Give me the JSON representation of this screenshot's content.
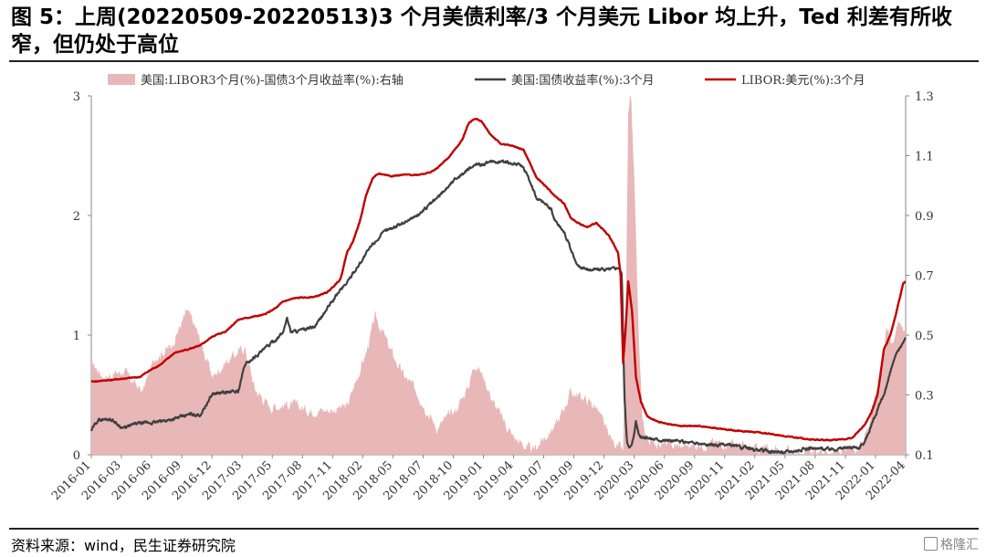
{
  "title": "图 5：上周(20220509-20220513)3 个月美债利率/3 个月美元 Libor 均上升，Ted 利差有所收窄，但仍处于高位",
  "source": "资料来源：wind，民生证券研究院",
  "watermark": "格隆汇",
  "colors": {
    "spread": "#e8b7b7",
    "treasury": "#404040",
    "libor": "#c00000",
    "axis": "#888888"
  },
  "chart_data": {
    "type": "line",
    "legend": [
      "美国:LIBOR3个月(%)-国债3个月收益率(%):右轴",
      "美国:国债收益率(%):3个月",
      "LIBOR:美元(%):3个月"
    ],
    "x_tick_labels": [
      "2016-01",
      "2016-03",
      "2016-06",
      "2016-09",
      "2016-12",
      "2017-03",
      "2017-05",
      "2017-08",
      "2017-11",
      "2018-02",
      "2018-05",
      "2018-07",
      "2018-10",
      "2019-01",
      "2019-04",
      "2019-07",
      "2019-09",
      "2019-12",
      "2020-03",
      "2020-06",
      "2020-09",
      "2020-11",
      "2021-02",
      "2021-05",
      "2021-08",
      "2021-11",
      "2022-01",
      "2022-04"
    ],
    "y_left": {
      "ticks": [
        0,
        1,
        2,
        3
      ],
      "range": [
        0,
        3
      ]
    },
    "y_right": {
      "ticks": [
        "0.1",
        "0.3",
        "0.5",
        "0.7",
        "0.9",
        "1.1",
        "1.3"
      ],
      "range": [
        0.1,
        1.3
      ]
    },
    "series": [
      {
        "name": "美国:LIBOR3个月(%)-国债3个月收益率(%):右轴",
        "type": "area",
        "axis": "right",
        "points": [
          [
            2016.0,
            0.41
          ],
          [
            2016.1,
            0.36
          ],
          [
            2016.25,
            0.38
          ],
          [
            2016.4,
            0.31
          ],
          [
            2016.5,
            0.43
          ],
          [
            2016.62,
            0.46
          ],
          [
            2016.75,
            0.58
          ],
          [
            2016.82,
            0.52
          ],
          [
            2016.95,
            0.36
          ],
          [
            2017.05,
            0.41
          ],
          [
            2017.2,
            0.46
          ],
          [
            2017.28,
            0.32
          ],
          [
            2017.4,
            0.26
          ],
          [
            2017.55,
            0.27
          ],
          [
            2017.7,
            0.25
          ],
          [
            2017.85,
            0.25
          ],
          [
            2018.0,
            0.26
          ],
          [
            2018.08,
            0.36
          ],
          [
            2018.15,
            0.44
          ],
          [
            2018.22,
            0.56
          ],
          [
            2018.28,
            0.51
          ],
          [
            2018.35,
            0.44
          ],
          [
            2018.45,
            0.36
          ],
          [
            2018.55,
            0.31
          ],
          [
            2018.7,
            0.19
          ],
          [
            2018.85,
            0.25
          ],
          [
            2018.95,
            0.33
          ],
          [
            2019.0,
            0.41
          ],
          [
            2019.07,
            0.36
          ],
          [
            2019.15,
            0.27
          ],
          [
            2019.3,
            0.16
          ],
          [
            2019.45,
            0.11
          ],
          [
            2019.55,
            0.16
          ],
          [
            2019.65,
            0.21
          ],
          [
            2019.75,
            0.31
          ],
          [
            2019.85,
            0.29
          ],
          [
            2019.95,
            0.26
          ],
          [
            2020.05,
            0.16
          ],
          [
            2020.12,
            0.13
          ],
          [
            2020.16,
            0.11
          ],
          [
            2020.18,
            0.5
          ],
          [
            2020.2,
            1.23
          ],
          [
            2020.22,
            1.3
          ],
          [
            2020.25,
            1.0
          ],
          [
            2020.28,
            0.52
          ],
          [
            2020.31,
            0.22
          ],
          [
            2020.35,
            0.15
          ],
          [
            2020.45,
            0.14
          ],
          [
            2020.55,
            0.13
          ],
          [
            2020.7,
            0.13
          ],
          [
            2020.85,
            0.14
          ],
          [
            2021.0,
            0.14
          ],
          [
            2021.15,
            0.12
          ],
          [
            2021.3,
            0.12
          ],
          [
            2021.45,
            0.11
          ],
          [
            2021.6,
            0.11
          ],
          [
            2021.75,
            0.11
          ],
          [
            2021.9,
            0.11
          ],
          [
            2022.0,
            0.13
          ],
          [
            2022.08,
            0.2
          ],
          [
            2022.15,
            0.33
          ],
          [
            2022.22,
            0.52
          ],
          [
            2022.27,
            0.48
          ],
          [
            2022.3,
            0.54
          ],
          [
            2022.37,
            0.52
          ]
        ]
      },
      {
        "name": "美国:国债收益率(%):3个月",
        "type": "line",
        "axis": "left",
        "points": [
          [
            2016.0,
            0.2
          ],
          [
            2016.05,
            0.29
          ],
          [
            2016.15,
            0.3
          ],
          [
            2016.25,
            0.22
          ],
          [
            2016.35,
            0.26
          ],
          [
            2016.5,
            0.27
          ],
          [
            2016.65,
            0.3
          ],
          [
            2016.78,
            0.34
          ],
          [
            2016.85,
            0.33
          ],
          [
            2016.95,
            0.51
          ],
          [
            2017.05,
            0.52
          ],
          [
            2017.15,
            0.53
          ],
          [
            2017.2,
            0.75
          ],
          [
            2017.35,
            0.88
          ],
          [
            2017.45,
            0.97
          ],
          [
            2017.5,
            1.02
          ],
          [
            2017.53,
            1.15
          ],
          [
            2017.56,
            1.03
          ],
          [
            2017.65,
            1.04
          ],
          [
            2017.75,
            1.07
          ],
          [
            2017.85,
            1.23
          ],
          [
            2017.95,
            1.38
          ],
          [
            2018.0,
            1.44
          ],
          [
            2018.1,
            1.6
          ],
          [
            2018.2,
            1.76
          ],
          [
            2018.3,
            1.87
          ],
          [
            2018.4,
            1.92
          ],
          [
            2018.55,
            2.0
          ],
          [
            2018.7,
            2.14
          ],
          [
            2018.85,
            2.31
          ],
          [
            2019.0,
            2.42
          ],
          [
            2019.1,
            2.44
          ],
          [
            2019.2,
            2.45
          ],
          [
            2019.35,
            2.43
          ],
          [
            2019.4,
            2.36
          ],
          [
            2019.45,
            2.24
          ],
          [
            2019.48,
            2.15
          ],
          [
            2019.55,
            2.1
          ],
          [
            2019.6,
            2.05
          ],
          [
            2019.62,
            1.97
          ],
          [
            2019.7,
            1.86
          ],
          [
            2019.75,
            1.72
          ],
          [
            2019.8,
            1.58
          ],
          [
            2019.88,
            1.55
          ],
          [
            2020.05,
            1.55
          ],
          [
            2020.13,
            1.57
          ],
          [
            2020.15,
            1.5
          ],
          [
            2020.17,
            0.5
          ],
          [
            2020.19,
            0.1
          ],
          [
            2020.21,
            0.05
          ],
          [
            2020.24,
            0.14
          ],
          [
            2020.26,
            0.27
          ],
          [
            2020.29,
            0.15
          ],
          [
            2020.35,
            0.14
          ],
          [
            2020.5,
            0.12
          ],
          [
            2020.7,
            0.1
          ],
          [
            2020.85,
            0.08
          ],
          [
            2021.0,
            0.08
          ],
          [
            2021.2,
            0.04
          ],
          [
            2021.4,
            0.02
          ],
          [
            2021.6,
            0.05
          ],
          [
            2021.8,
            0.05
          ],
          [
            2021.95,
            0.06
          ],
          [
            2022.0,
            0.06
          ],
          [
            2022.05,
            0.1
          ],
          [
            2022.12,
            0.3
          ],
          [
            2022.2,
            0.5
          ],
          [
            2022.28,
            0.8
          ],
          [
            2022.33,
            0.9
          ],
          [
            2022.37,
            0.99
          ]
        ]
      },
      {
        "name": "LIBOR:美元(%):3个月",
        "type": "line",
        "axis": "left",
        "points": [
          [
            2016.0,
            0.61
          ],
          [
            2016.2,
            0.63
          ],
          [
            2016.38,
            0.65
          ],
          [
            2016.45,
            0.7
          ],
          [
            2016.55,
            0.76
          ],
          [
            2016.65,
            0.85
          ],
          [
            2016.75,
            0.88
          ],
          [
            2016.85,
            0.91
          ],
          [
            2016.95,
            0.99
          ],
          [
            2017.05,
            1.03
          ],
          [
            2017.15,
            1.13
          ],
          [
            2017.25,
            1.15
          ],
          [
            2017.35,
            1.17
          ],
          [
            2017.45,
            1.23
          ],
          [
            2017.5,
            1.28
          ],
          [
            2017.6,
            1.31
          ],
          [
            2017.75,
            1.32
          ],
          [
            2017.85,
            1.36
          ],
          [
            2017.95,
            1.47
          ],
          [
            2018.0,
            1.69
          ],
          [
            2018.05,
            1.79
          ],
          [
            2018.1,
            1.95
          ],
          [
            2018.15,
            2.17
          ],
          [
            2018.2,
            2.31
          ],
          [
            2018.25,
            2.35
          ],
          [
            2018.35,
            2.33
          ],
          [
            2018.45,
            2.34
          ],
          [
            2018.55,
            2.34
          ],
          [
            2018.65,
            2.36
          ],
          [
            2018.7,
            2.39
          ],
          [
            2018.8,
            2.49
          ],
          [
            2018.9,
            2.63
          ],
          [
            2018.95,
            2.77
          ],
          [
            2019.0,
            2.81
          ],
          [
            2019.05,
            2.79
          ],
          [
            2019.12,
            2.68
          ],
          [
            2019.2,
            2.6
          ],
          [
            2019.3,
            2.58
          ],
          [
            2019.38,
            2.55
          ],
          [
            2019.43,
            2.44
          ],
          [
            2019.48,
            2.32
          ],
          [
            2019.55,
            2.25
          ],
          [
            2019.6,
            2.19
          ],
          [
            2019.65,
            2.14
          ],
          [
            2019.7,
            2.1
          ],
          [
            2019.75,
            1.98
          ],
          [
            2019.82,
            1.93
          ],
          [
            2019.88,
            1.9
          ],
          [
            2019.95,
            1.94
          ],
          [
            2020.05,
            1.83
          ],
          [
            2020.12,
            1.69
          ],
          [
            2020.14,
            1.5
          ],
          [
            2020.16,
            0.77
          ],
          [
            2020.18,
            1.06
          ],
          [
            2020.2,
            1.45
          ],
          [
            2020.23,
            1.2
          ],
          [
            2020.26,
            0.65
          ],
          [
            2020.3,
            0.44
          ],
          [
            2020.35,
            0.32
          ],
          [
            2020.45,
            0.27
          ],
          [
            2020.6,
            0.24
          ],
          [
            2020.75,
            0.24
          ],
          [
            2020.9,
            0.22
          ],
          [
            2021.05,
            0.2
          ],
          [
            2021.2,
            0.19
          ],
          [
            2021.4,
            0.16
          ],
          [
            2021.6,
            0.13
          ],
          [
            2021.8,
            0.12
          ],
          [
            2021.95,
            0.14
          ],
          [
            2022.05,
            0.25
          ],
          [
            2022.1,
            0.35
          ],
          [
            2022.15,
            0.5
          ],
          [
            2022.2,
            0.88
          ],
          [
            2022.25,
            1.0
          ],
          [
            2022.3,
            1.2
          ],
          [
            2022.35,
            1.43
          ],
          [
            2022.37,
            1.45
          ]
        ]
      }
    ]
  }
}
